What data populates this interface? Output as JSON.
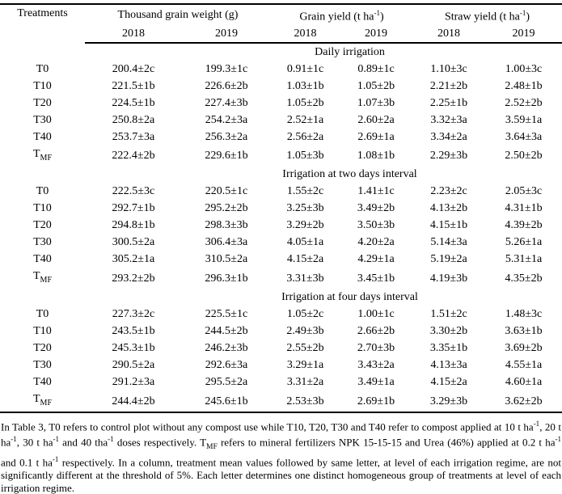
{
  "table": {
    "col_headers": {
      "treatments": "Treatments",
      "groups": [
        {
          "name": "thousand-grain-weight",
          "label_segments": [
            {
              "t": "Thousand grain weight (g)"
            }
          ],
          "years": [
            "2018",
            "2019"
          ]
        },
        {
          "name": "grain-yield",
          "label_segments": [
            {
              "t": "Grain yield (t ha"
            },
            {
              "sup": "-1"
            },
            {
              "t": ")"
            }
          ],
          "years": [
            "2018",
            "2019"
          ]
        },
        {
          "name": "straw-yield",
          "label_segments": [
            {
              "t": "Straw yield (t ha"
            },
            {
              "sup": "-1"
            },
            {
              "t": ")"
            }
          ],
          "years": [
            "2018",
            "2019"
          ]
        }
      ]
    },
    "sections": [
      {
        "title": "Daily irrigation",
        "rows": [
          {
            "treatment": {
              "base": "T0",
              "sub": ""
            },
            "values": [
              "200.4±2c",
              "199.3±1c",
              "0.91±1c",
              "0.89±1c",
              "1.10±3c",
              "1.00±3c"
            ]
          },
          {
            "treatment": {
              "base": "T10",
              "sub": ""
            },
            "values": [
              "221.5±1b",
              "226.6±2b",
              "1.03±1b",
              "1.05±2b",
              "2.21±2b",
              "2.48±1b"
            ]
          },
          {
            "treatment": {
              "base": "T20",
              "sub": ""
            },
            "values": [
              "224.5±1b",
              "227.4±3b",
              "1.05±2b",
              "1.07±3b",
              "2.25±1b",
              "2.52±2b"
            ]
          },
          {
            "treatment": {
              "base": "T30",
              "sub": ""
            },
            "values": [
              "250.8±2a",
              "254.2±3a",
              "2.52±1a",
              "2.60±2a",
              "3.32±3a",
              "3.59±1a"
            ]
          },
          {
            "treatment": {
              "base": "T40",
              "sub": ""
            },
            "values": [
              "253.7±3a",
              "256.3±2a",
              "2.56±2a",
              "2.69±1a",
              "3.34±2a",
              "3.64±3a"
            ]
          },
          {
            "treatment": {
              "base": "T",
              "sub": "MF"
            },
            "values": [
              "222.4±2b",
              "229.6±1b",
              "1.05±3b",
              "1.08±1b",
              "2.29±3b",
              "2.50±2b"
            ]
          }
        ]
      },
      {
        "title": "Irrigation at two days interval",
        "rows": [
          {
            "treatment": {
              "base": "T0",
              "sub": ""
            },
            "values": [
              "222.5±3c",
              "220.5±1c",
              "1.55±2c",
              "1.41±1c",
              "2.23±2c",
              "2.05±3c"
            ]
          },
          {
            "treatment": {
              "base": "T10",
              "sub": ""
            },
            "values": [
              "292.7±1b",
              "295.2±2b",
              "3.25±3b",
              "3.49±2b",
              "4.13±2b",
              "4.31±1b"
            ]
          },
          {
            "treatment": {
              "base": "T20",
              "sub": ""
            },
            "values": [
              "294.8±1b",
              "298.3±3b",
              "3.29±2b",
              "3.50±3b",
              "4.15±1b",
              "4.39±2b"
            ]
          },
          {
            "treatment": {
              "base": "T30",
              "sub": ""
            },
            "values": [
              "300.5±2a",
              "306.4±3a",
              "4.05±1a",
              "4.20±2a",
              "5.14±3a",
              "5.26±1a"
            ]
          },
          {
            "treatment": {
              "base": "T40",
              "sub": ""
            },
            "values": [
              "305.2±1a",
              "310.5±2a",
              "4.15±2a",
              "4.29±1a",
              "5.19±2a",
              "5.31±1a"
            ]
          },
          {
            "treatment": {
              "base": "T",
              "sub": "MF"
            },
            "values": [
              "293.2±2b",
              "296.3±1b",
              "3.31±3b",
              "3.45±1b",
              "4.19±3b",
              "4.35±2b"
            ]
          }
        ]
      },
      {
        "title": "Irrigation at four days interval",
        "rows": [
          {
            "treatment": {
              "base": "T0",
              "sub": ""
            },
            "values": [
              "227.3±2c",
              "225.5±1c",
              "1.05±2c",
              "1.00±1c",
              "1.51±2c",
              "1.48±3c"
            ]
          },
          {
            "treatment": {
              "base": "T10",
              "sub": ""
            },
            "values": [
              "243.5±1b",
              "244.5±2b",
              "2.49±3b",
              "2.66±2b",
              "3.30±2b",
              "3.63±1b"
            ]
          },
          {
            "treatment": {
              "base": "T20",
              "sub": ""
            },
            "values": [
              "245.3±1b",
              "246.2±3b",
              "2.55±2b",
              "2.70±3b",
              "3.35±1b",
              "3.69±2b"
            ]
          },
          {
            "treatment": {
              "base": "T30",
              "sub": ""
            },
            "values": [
              "290.5±2a",
              "292.6±3a",
              "3.29±1a",
              "3.43±2a",
              "4.13±3a",
              "4.55±1a"
            ]
          },
          {
            "treatment": {
              "base": "T40",
              "sub": ""
            },
            "values": [
              "291.2±3a",
              "295.5±2a",
              "3.31±2a",
              "3.49±1a",
              "4.15±2a",
              "4.60±1a"
            ]
          },
          {
            "treatment": {
              "base": "T",
              "sub": "MF"
            },
            "values": [
              "244.4±2b",
              "245.6±1b",
              "2.53±3b",
              "2.69±1b",
              "3.29±3b",
              "3.62±2b"
            ]
          }
        ]
      }
    ]
  },
  "footnote_segments": [
    {
      "t": "In Table 3, T0 refers to control plot without any compost use while T10, T20, T30 and T40 refer to compost applied at 10 t ha"
    },
    {
      "sup": "-1"
    },
    {
      "t": ", 20 t ha"
    },
    {
      "sup": "-1"
    },
    {
      "t": ", 30 t ha"
    },
    {
      "sup": "-1"
    },
    {
      "t": " and 40 tha"
    },
    {
      "sup": "-1"
    },
    {
      "t": " doses respectively. T"
    },
    {
      "sub": "MF"
    },
    {
      "t": " refers to mineral fertilizers NPK 15-15-15 and Urea (46%) applied at 0.2 t ha"
    },
    {
      "sup": "-1"
    },
    {
      "t": " and 0.1 t ha"
    },
    {
      "sup": "-1"
    },
    {
      "t": " respectively. In a column, treatment mean values followed by same letter, at level of each irrigation regime, are not significantly different at the threshold of 5%. Each letter determines one distinct homogeneous group of treatments at level of each irrigation regime."
    }
  ],
  "colors": {
    "text": "#000000",
    "background": "#ffffff",
    "rule": "#000000"
  }
}
